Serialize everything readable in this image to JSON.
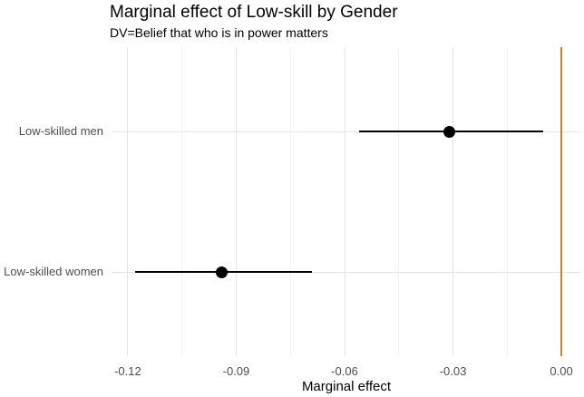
{
  "chart_data": {
    "type": "pointrange",
    "title": "Marginal effect of Low-skill by Gender",
    "subtitle": "DV=Belief that who is in power matters",
    "xlabel": "Marginal effect",
    "ylabel": "",
    "categories": [
      "Low-skilled men",
      "Low-skilled women"
    ],
    "points": [
      {
        "category": "Low-skilled men",
        "estimate": -0.031,
        "ci_low": -0.056,
        "ci_high": -0.005
      },
      {
        "category": "Low-skilled women",
        "estimate": -0.094,
        "ci_low": -0.118,
        "ci_high": -0.069
      }
    ],
    "x_ticks": [
      -0.12,
      -0.09,
      -0.06,
      -0.03,
      0.0
    ],
    "x_tick_labels": [
      "-0.12",
      "-0.09",
      "-0.06",
      "-0.03",
      "0.00"
    ],
    "xlim": [
      -0.1245,
      0.0055
    ],
    "reference_line": {
      "x": 0
    },
    "grid": true,
    "legend": false,
    "colors": {
      "reference_line": "#c8832c",
      "point": "#000000",
      "ci": "#000000",
      "grid_major": "#e4e4e4",
      "grid_minor": "#f1f1f1",
      "axis_text": "#4d4d4d",
      "title_text": "#000000"
    }
  }
}
